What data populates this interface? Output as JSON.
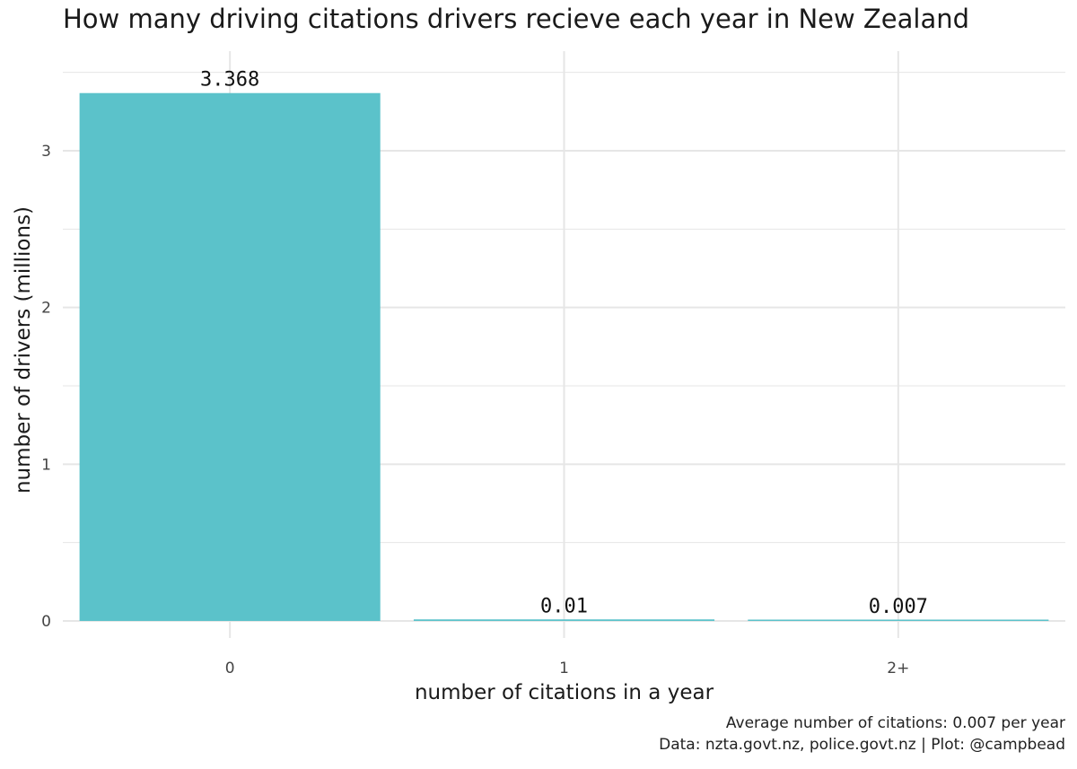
{
  "chart_data": {
    "type": "bar",
    "title": "How many driving citations drivers recieve each year in New Zealand",
    "xlabel": "number of citations in a year",
    "ylabel": "number of drivers (millions)",
    "categories": [
      "0",
      "1",
      "2+"
    ],
    "values": [
      3.368,
      0.01,
      0.007
    ],
    "data_labels": [
      "3.368",
      "0.01",
      "0.007"
    ],
    "yticks": [
      0,
      1,
      2,
      3
    ],
    "ytick_labels": [
      "0",
      "1",
      "2",
      "3"
    ],
    "ylim": [
      0,
      3.5
    ],
    "grid": true,
    "bar_color": "#5bc2ca",
    "grid_color": "#e6e6e6",
    "captions": [
      "Average number of citations: 0.007 per year",
      "Data: nzta.govt.nz, police.govt.nz | Plot: @campbead"
    ]
  }
}
